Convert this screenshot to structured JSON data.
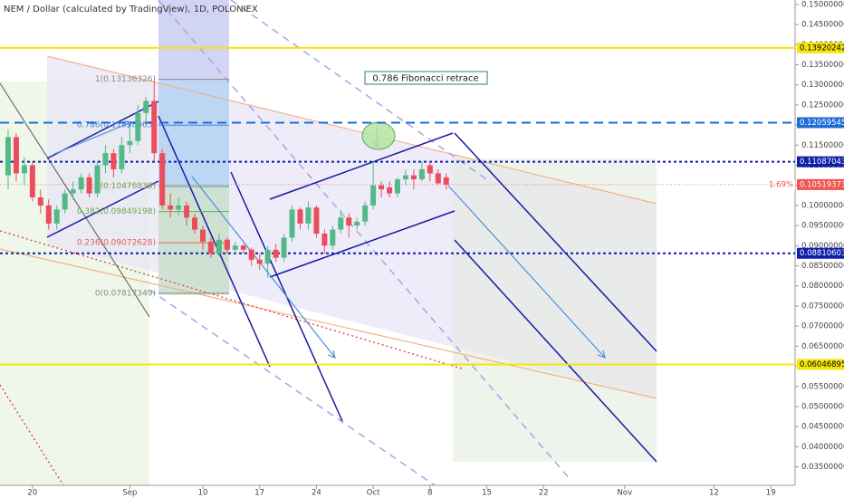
{
  "chart_data": {
    "type": "candlestick",
    "title": "NEM / Dollar (calculated by TradingView), 1D, POLONIEX",
    "x": [
      "08-17",
      "08-18",
      "08-19",
      "08-20",
      "08-21",
      "08-22",
      "08-23",
      "08-24",
      "08-25",
      "08-26",
      "08-27",
      "08-28",
      "08-29",
      "08-30",
      "08-31",
      "09-01",
      "09-02",
      "09-03",
      "09-04",
      "09-05",
      "09-06",
      "09-07",
      "09-08",
      "09-09",
      "09-10",
      "09-11",
      "09-12",
      "09-13",
      "09-14",
      "09-15",
      "09-16",
      "09-17",
      "09-18",
      "09-19",
      "09-20",
      "09-21",
      "09-22",
      "09-23",
      "09-24",
      "09-25",
      "09-26",
      "09-27",
      "09-28",
      "09-29",
      "09-30",
      "10-01",
      "10-02",
      "10-03",
      "10-04",
      "10-05",
      "10-06",
      "10-07",
      "10-08",
      "10-09",
      "10-10"
    ],
    "open": [
      0.1075,
      0.117,
      0.108,
      0.11,
      0.102,
      0.1,
      0.0955,
      0.099,
      0.103,
      0.104,
      0.107,
      0.103,
      0.11,
      0.113,
      0.109,
      0.115,
      0.116,
      0.123,
      0.126,
      0.113,
      0.1,
      0.099,
      0.1,
      0.097,
      0.094,
      0.091,
      0.088,
      0.0915,
      0.089,
      0.09,
      0.089,
      0.0865,
      0.0855,
      0.089,
      0.087,
      0.092,
      0.099,
      0.0955,
      0.0995,
      0.093,
      0.09,
      0.094,
      0.097,
      0.095,
      0.096,
      0.1,
      0.105,
      0.1045,
      0.103,
      0.1065,
      0.1075,
      0.1065,
      0.11,
      0.108,
      0.107
    ],
    "high": [
      0.119,
      0.118,
      0.112,
      0.111,
      0.104,
      0.1015,
      0.1,
      0.104,
      0.106,
      0.108,
      0.108,
      0.111,
      0.115,
      0.114,
      0.117,
      0.12,
      0.125,
      0.127,
      0.131,
      0.114,
      0.103,
      0.102,
      0.101,
      0.098,
      0.095,
      0.092,
      0.093,
      0.092,
      0.091,
      0.0905,
      0.0895,
      0.088,
      0.09,
      0.0905,
      0.093,
      0.1,
      0.0995,
      0.101,
      0.1,
      0.094,
      0.095,
      0.099,
      0.098,
      0.097,
      0.101,
      0.111,
      0.106,
      0.106,
      0.107,
      0.109,
      0.109,
      0.111,
      0.111,
      0.109,
      0.108
    ],
    "low": [
      0.104,
      0.106,
      0.105,
      0.101,
      0.098,
      0.094,
      0.094,
      0.098,
      0.1015,
      0.103,
      0.102,
      0.102,
      0.108,
      0.107,
      0.108,
      0.113,
      0.115,
      0.121,
      0.111,
      0.099,
      0.097,
      0.0975,
      0.095,
      0.093,
      0.089,
      0.087,
      0.0875,
      0.088,
      0.088,
      0.088,
      0.085,
      0.084,
      0.082,
      0.086,
      0.086,
      0.091,
      0.094,
      0.094,
      0.092,
      0.088,
      0.089,
      0.093,
      0.092,
      0.094,
      0.095,
      0.099,
      0.102,
      0.102,
      0.102,
      0.105,
      0.104,
      0.106,
      0.106,
      0.105,
      0.104
    ],
    "close": [
      0.117,
      0.108,
      0.11,
      0.102,
      0.1,
      0.0955,
      0.099,
      0.103,
      0.104,
      0.107,
      0.103,
      0.11,
      0.113,
      0.109,
      0.115,
      0.116,
      0.123,
      0.126,
      0.113,
      0.1,
      0.099,
      0.1,
      0.097,
      0.094,
      0.091,
      0.088,
      0.0915,
      0.089,
      0.09,
      0.089,
      0.0865,
      0.0855,
      0.089,
      0.087,
      0.092,
      0.099,
      0.0955,
      0.0995,
      0.093,
      0.09,
      0.094,
      0.097,
      0.095,
      0.096,
      0.1,
      0.105,
      0.104,
      0.103,
      0.1065,
      0.1075,
      0.1065,
      0.109,
      0.108,
      0.1055,
      0.10519373
    ],
    "up_color": "#53b987",
    "down_color": "#eb4d5c",
    "xlim": [
      "08-16",
      "11-22"
    ],
    "xticks": [
      {
        "value": "08-20",
        "label": "20"
      },
      {
        "value": "09-01",
        "label": "Sep"
      },
      {
        "value": "09-10",
        "label": "10"
      },
      {
        "value": "09-17",
        "label": "17"
      },
      {
        "value": "09-24",
        "label": "24"
      },
      {
        "value": "10-01",
        "label": "Oct"
      },
      {
        "value": "10-08",
        "label": "8"
      },
      {
        "value": "10-15",
        "label": "15"
      },
      {
        "value": "10-22",
        "label": "22"
      },
      {
        "value": "11-01",
        "label": "Nov"
      },
      {
        "value": "11-12",
        "label": "12"
      },
      {
        "value": "11-19",
        "label": "19"
      }
    ],
    "ylim": [
      0.0304,
      0.1511
    ],
    "yticks": [
      {
        "value": 0.035,
        "label": "0.03500000"
      },
      {
        "value": 0.04,
        "label": "0.04000000"
      },
      {
        "value": 0.045,
        "label": "0.04500000"
      },
      {
        "value": 0.05,
        "label": "0.05000000"
      },
      {
        "value": 0.055,
        "label": "0.05500000"
      },
      {
        "value": 0.06,
        "label": "0.06000000"
      },
      {
        "value": 0.065,
        "label": "0.06500000"
      },
      {
        "value": 0.07,
        "label": "0.07000000"
      },
      {
        "value": 0.075,
        "label": "0.07500000"
      },
      {
        "value": 0.08,
        "label": "0.08000000"
      },
      {
        "value": 0.085,
        "label": "0.08500000"
      },
      {
        "value": 0.09,
        "label": "0.09000000"
      },
      {
        "value": 0.095,
        "label": "0.09500000"
      },
      {
        "value": 0.1,
        "label": "0.10000000"
      },
      {
        "value": 0.105,
        "label": "0.10500000"
      },
      {
        "value": 0.11,
        "label": "0.11000000"
      },
      {
        "value": 0.115,
        "label": "0.11500000"
      },
      {
        "value": 0.12,
        "label": "0.12000000"
      },
      {
        "value": 0.125,
        "label": "0.12500000"
      },
      {
        "value": 0.13,
        "label": "0.13000000"
      },
      {
        "value": 0.135,
        "label": "0.13500000"
      },
      {
        "value": 0.14,
        "label": "0.14000000"
      },
      {
        "value": 0.145,
        "label": "0.14500000"
      },
      {
        "value": 0.15,
        "label": "0.15000000"
      }
    ],
    "levels": [
      {
        "value": 0.13920242,
        "color": "#f5e50a",
        "style": "solid"
      },
      {
        "value": 0.12059545,
        "color": "#1e6bd6",
        "style": "dashed"
      },
      {
        "value": 0.11087043,
        "color": "#0d1fa8",
        "style": "dotted"
      },
      {
        "value": 0.08810603,
        "color": "#0d1fa8",
        "style": "dotted"
      },
      {
        "value": 0.06046895,
        "color": "#f5e50a",
        "style": "solid"
      }
    ],
    "last_price": {
      "value": 0.10519373,
      "change_label": "1.69%",
      "color": "#ef5350"
    },
    "fibonacci": [
      {
        "value": 0.13136326,
        "label": "1(0.13136326)",
        "color": "#888888"
      },
      {
        "value": 0.11998065,
        "label": "0.786(0.11998065)",
        "color": "#4a7fd4"
      },
      {
        "value": 0.10476838,
        "label": "0.5(0.10476838)",
        "color": "#6aa84f"
      },
      {
        "value": 0.09849198,
        "label": "0.382(0.09849198)",
        "color": "#6aa84f"
      },
      {
        "value": 0.09072628,
        "label": "0.236(0.09072628)",
        "color": "#e0605a"
      },
      {
        "value": 0.07817349,
        "label": "0(0.07817349)",
        "color": "#888888"
      }
    ],
    "annotation": "0.786 Fibonacci retrace"
  }
}
